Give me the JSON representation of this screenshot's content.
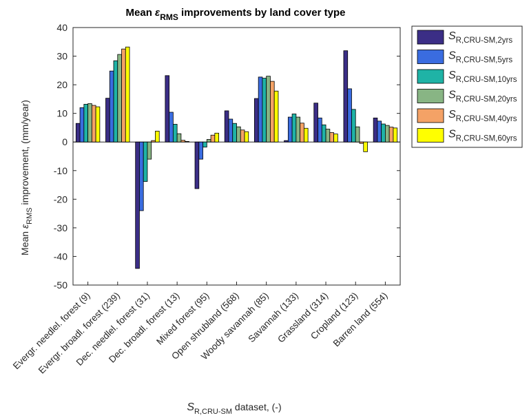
{
  "chart_data": {
    "type": "bar",
    "title": {
      "prefix": "Mean ",
      "symbol": "ε",
      "symbol_sub": "RMS",
      "suffix": " improvements by land cover type"
    },
    "ylabel": {
      "prefix": "Mean ",
      "symbol": "ε",
      "symbol_sub": "RMS",
      "suffix": " improvement, (mm/year)"
    },
    "xlabel": {
      "symbol": "S",
      "symbol_sub": "R,CRU-SM",
      "suffix": " dataset, (-)"
    },
    "ylim": [
      -50,
      40
    ],
    "yticks": [
      -50,
      -40,
      -30,
      -20,
      -10,
      0,
      10,
      20,
      30,
      40
    ],
    "grid": false,
    "legend_position": "outside-right",
    "categories": [
      "Evergr. needlel. forest (9)",
      "Evergr. broadl. forest (239)",
      "Dec. needlel. forest (31)",
      "Dec. broadl. forest (13)",
      "Mixed forest (95)",
      "Open shrubland (568)",
      "Woody savannah (85)",
      "Savannah (133)",
      "Grassland (314)",
      "Cropland (123)",
      "Barren land (554)"
    ],
    "series": [
      {
        "name_symbol": "S",
        "name_sub": "R,CRU-SM,2yrs",
        "color": "#3b2e86",
        "values": [
          6.5,
          15.3,
          -44.2,
          23.2,
          -16.3,
          10.9,
          15.2,
          0.5,
          13.6,
          31.9,
          8.4
        ]
      },
      {
        "name_symbol": "S",
        "name_sub": "R,CRU-SM,5yrs",
        "color": "#3a6ce0",
        "values": [
          12.0,
          24.8,
          -24.0,
          10.4,
          -6.0,
          8.0,
          22.7,
          8.7,
          8.4,
          18.6,
          7.3
        ]
      },
      {
        "name_symbol": "S",
        "name_sub": "R,CRU-SM,10yrs",
        "color": "#1fb3a6",
        "values": [
          13.2,
          28.4,
          -13.8,
          6.2,
          -1.8,
          6.5,
          22.3,
          9.8,
          6.0,
          11.4,
          6.3
        ]
      },
      {
        "name_symbol": "S",
        "name_sub": "R,CRU-SM,20yrs",
        "color": "#88b584",
        "values": [
          13.4,
          30.6,
          -6.0,
          2.9,
          0.9,
          5.3,
          23.0,
          8.7,
          4.5,
          5.3,
          5.8
        ]
      },
      {
        "name_symbol": "S",
        "name_sub": "R,CRU-SM,40yrs",
        "color": "#f4a266",
        "values": [
          12.8,
          32.5,
          0.5,
          0.6,
          2.4,
          4.2,
          21.2,
          6.6,
          3.3,
          -0.5,
          5.2
        ]
      },
      {
        "name_symbol": "S",
        "name_sub": "R,CRU-SM,60yrs",
        "color": "#ffff00",
        "values": [
          12.3,
          33.2,
          3.8,
          0.2,
          3.1,
          3.6,
          17.8,
          4.8,
          2.8,
          -3.4,
          4.9
        ]
      }
    ]
  }
}
